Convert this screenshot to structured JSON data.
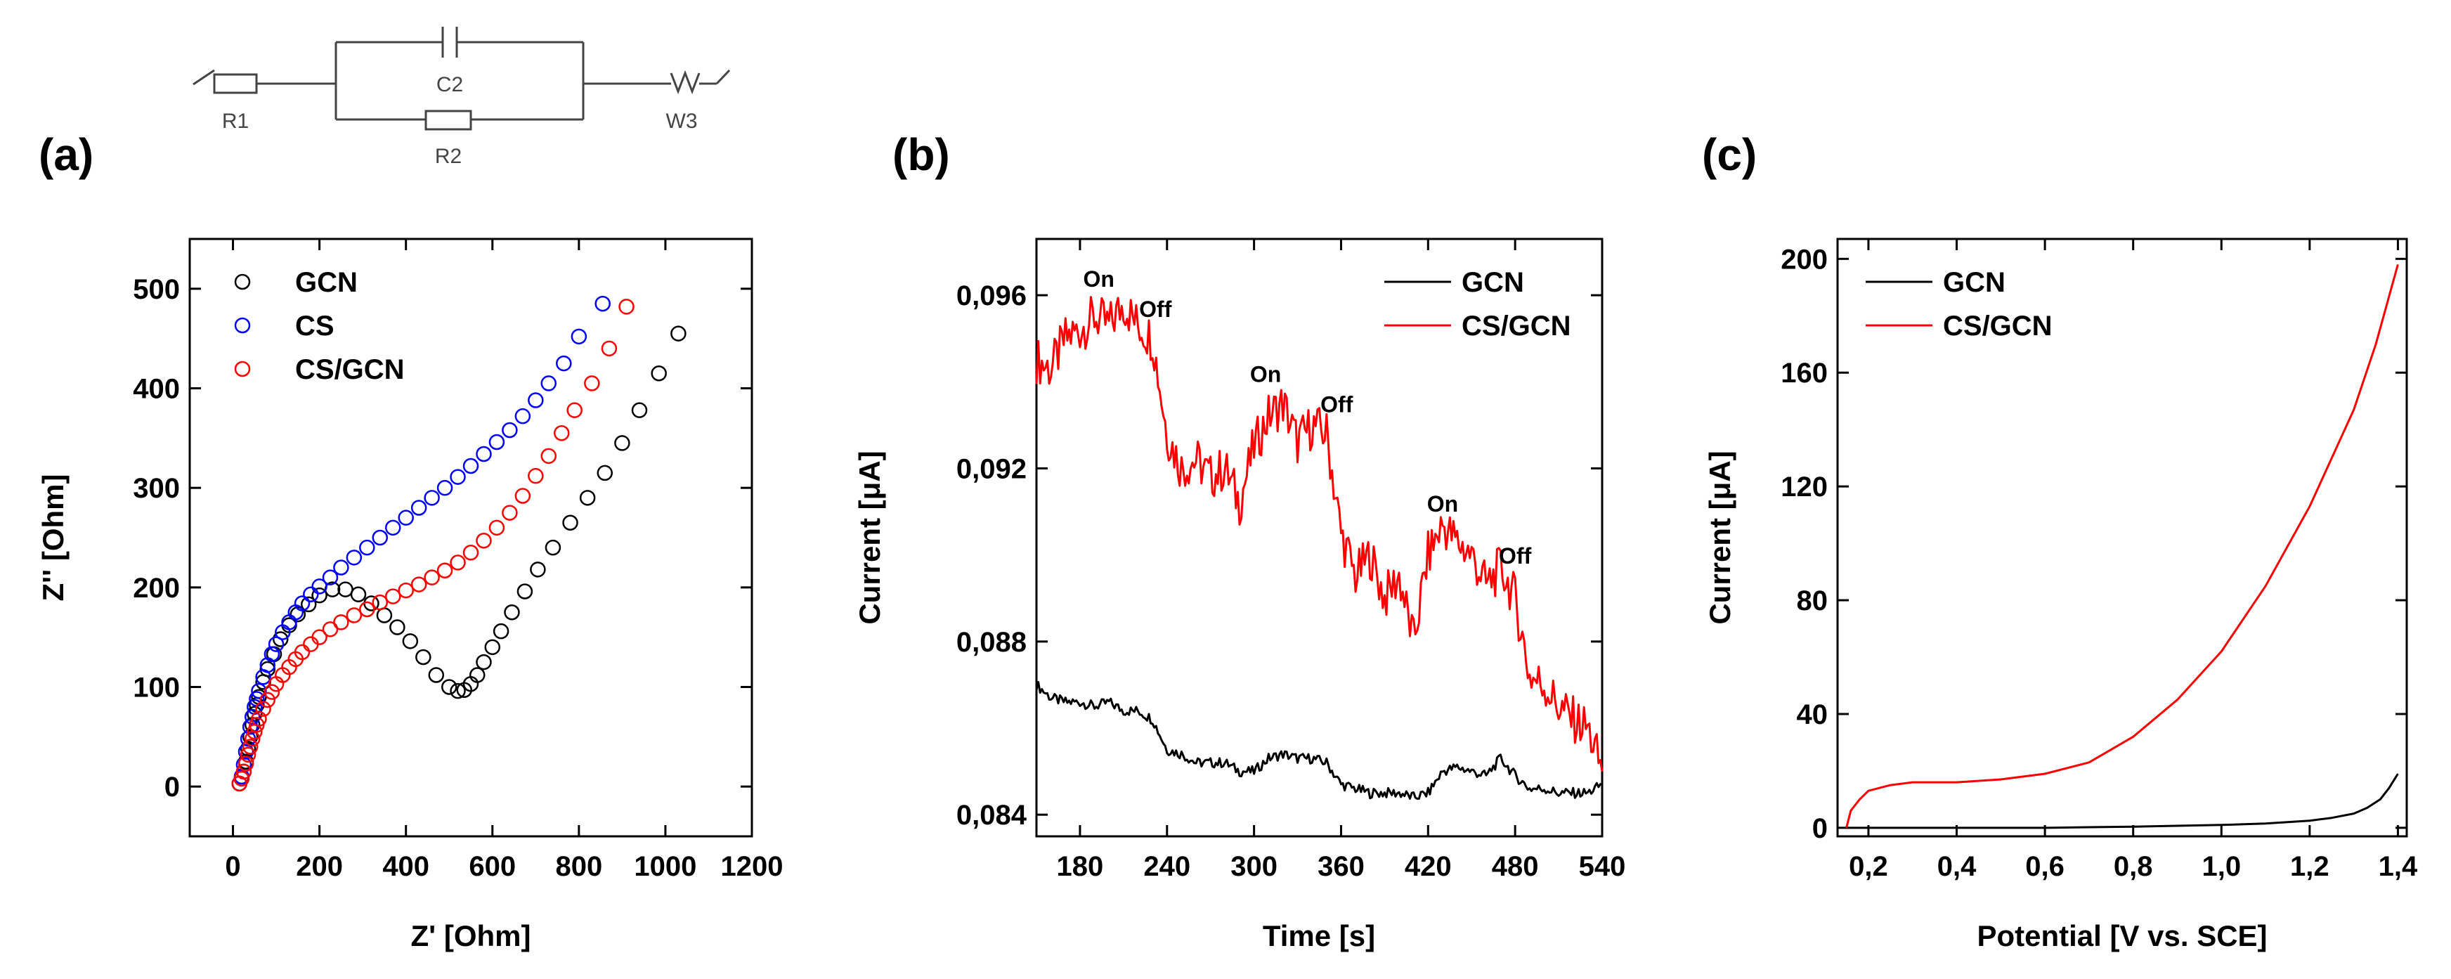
{
  "circuit": {
    "labels": [
      "R1",
      "C2",
      "R2",
      "W3"
    ]
  },
  "chart_data": [
    {
      "panel": "(a)",
      "type": "scatter",
      "xlabel": "Z' [Ohm]",
      "ylabel": "Z'' [Ohm]",
      "xlim": [
        -100,
        1200
      ],
      "ylim": [
        -50,
        550
      ],
      "xticks": [
        0,
        200,
        400,
        600,
        800,
        1000,
        1200
      ],
      "yticks": [
        0,
        100,
        200,
        300,
        400,
        500
      ],
      "legend_position": "top-left",
      "series": [
        {
          "name": "GCN",
          "color": "#000000",
          "marker": "open-circle",
          "x": [
            15,
            20,
            25,
            30,
            35,
            40,
            45,
            50,
            55,
            60,
            70,
            80,
            95,
            110,
            130,
            150,
            175,
            200,
            230,
            260,
            290,
            320,
            350,
            380,
            410,
            440,
            470,
            500,
            520,
            535,
            550,
            565,
            580,
            600,
            620,
            645,
            675,
            705,
            740,
            780,
            820,
            860,
            900,
            940,
            985,
            1030
          ],
          "y": [
            3,
            8,
            15,
            25,
            38,
            50,
            62,
            73,
            82,
            90,
            105,
            118,
            133,
            148,
            162,
            173,
            183,
            192,
            198,
            198,
            193,
            184,
            172,
            160,
            146,
            130,
            112,
            100,
            96,
            97,
            103,
            112,
            125,
            140,
            156,
            175,
            196,
            218,
            240,
            265,
            290,
            315,
            345,
            378,
            415,
            455
          ]
        },
        {
          "name": "CS",
          "color": "#0000ff",
          "marker": "open-circle",
          "x": [
            15,
            20,
            25,
            30,
            35,
            40,
            45,
            50,
            55,
            60,
            70,
            80,
            90,
            100,
            115,
            130,
            145,
            160,
            180,
            200,
            225,
            250,
            280,
            310,
            340,
            370,
            400,
            430,
            460,
            490,
            520,
            550,
            580,
            610,
            640,
            670,
            700,
            730,
            765,
            800,
            855
          ],
          "y": [
            3,
            10,
            22,
            35,
            48,
            60,
            70,
            80,
            88,
            96,
            110,
            122,
            133,
            143,
            155,
            165,
            175,
            184,
            193,
            201,
            210,
            220,
            230,
            240,
            250,
            260,
            270,
            280,
            290,
            300,
            311,
            322,
            334,
            346,
            358,
            372,
            388,
            405,
            425,
            452,
            485
          ]
        },
        {
          "name": "CS/GCN",
          "color": "#ff0000",
          "marker": "open-circle",
          "x": [
            15,
            20,
            25,
            30,
            35,
            40,
            45,
            50,
            55,
            60,
            70,
            80,
            90,
            100,
            115,
            130,
            145,
            160,
            180,
            200,
            225,
            250,
            280,
            310,
            340,
            370,
            400,
            430,
            460,
            490,
            520,
            550,
            580,
            610,
            640,
            670,
            700,
            730,
            760,
            790,
            830,
            870,
            910
          ],
          "y": [
            3,
            8,
            15,
            23,
            32,
            40,
            48,
            55,
            62,
            68,
            78,
            87,
            95,
            103,
            112,
            120,
            128,
            135,
            143,
            150,
            158,
            165,
            172,
            178,
            185,
            191,
            197,
            203,
            210,
            217,
            225,
            235,
            247,
            260,
            275,
            292,
            312,
            332,
            355,
            378,
            405,
            440,
            482
          ]
        }
      ]
    },
    {
      "panel": "(b)",
      "type": "line",
      "xlabel": "Time [s]",
      "ylabel": "Current [μA]",
      "xlim": [
        150,
        540
      ],
      "ylim": [
        0.0835,
        0.0973
      ],
      "xticks": [
        180,
        240,
        300,
        360,
        420,
        480,
        540
      ],
      "yticks": [
        0.084,
        0.088,
        0.092,
        0.096
      ],
      "ytick_labels": [
        "0,084",
        "0,088",
        "0,092",
        "0,096"
      ],
      "legend_position": "top-right",
      "series": [
        {
          "name": "GCN",
          "color": "#000000",
          "x": [
            150,
            160,
            170,
            180,
            190,
            200,
            210,
            220,
            230,
            240,
            250,
            260,
            270,
            280,
            290,
            300,
            310,
            320,
            330,
            340,
            350,
            360,
            370,
            380,
            390,
            400,
            410,
            420,
            430,
            440,
            450,
            460,
            470,
            480,
            490,
            500,
            510,
            520,
            530,
            540
          ],
          "y": [
            0.087,
            0.0867,
            0.0866,
            0.0866,
            0.0865,
            0.0866,
            0.0864,
            0.0864,
            0.0862,
            0.0855,
            0.0854,
            0.0852,
            0.0852,
            0.0852,
            0.085,
            0.085,
            0.0853,
            0.0854,
            0.0853,
            0.0853,
            0.0852,
            0.0847,
            0.0846,
            0.0845,
            0.0845,
            0.0845,
            0.0844,
            0.0845,
            0.085,
            0.0851,
            0.085,
            0.0849,
            0.0853,
            0.0849,
            0.0846,
            0.0846,
            0.0845,
            0.0845,
            0.0845,
            0.0847
          ]
        },
        {
          "name": "CS/GCN",
          "color": "#ff0000",
          "x": [
            150,
            160,
            170,
            180,
            190,
            200,
            210,
            220,
            230,
            240,
            250,
            260,
            270,
            280,
            290,
            300,
            310,
            320,
            330,
            340,
            350,
            360,
            370,
            380,
            390,
            400,
            410,
            420,
            430,
            440,
            450,
            460,
            470,
            480,
            490,
            500,
            510,
            520,
            530,
            540
          ],
          "y": [
            0.0945,
            0.0943,
            0.095,
            0.0952,
            0.0955,
            0.0953,
            0.0958,
            0.0953,
            0.095,
            0.0928,
            0.092,
            0.0922,
            0.0918,
            0.092,
            0.0912,
            0.0925,
            0.0932,
            0.0935,
            0.0926,
            0.093,
            0.0928,
            0.0905,
            0.0895,
            0.09,
            0.089,
            0.0895,
            0.088,
            0.09,
            0.0907,
            0.0903,
            0.09,
            0.0893,
            0.0897,
            0.089,
            0.0872,
            0.087,
            0.0865,
            0.0862,
            0.086,
            0.085
          ]
        }
      ],
      "annotations": [
        {
          "text": "On",
          "x": 193,
          "y": 0.0962
        },
        {
          "text": "Off",
          "x": 232,
          "y": 0.0955
        },
        {
          "text": "On",
          "x": 308,
          "y": 0.094
        },
        {
          "text": "Off",
          "x": 357,
          "y": 0.0933
        },
        {
          "text": "On",
          "x": 430,
          "y": 0.091
        },
        {
          "text": "Off",
          "x": 480,
          "y": 0.0898
        }
      ]
    },
    {
      "panel": "(c)",
      "type": "line",
      "xlabel": "Potential [V vs. SCE]",
      "ylabel": "Current [μA]",
      "xlim": [
        0.13,
        1.42
      ],
      "ylim": [
        -3,
        207
      ],
      "xticks": [
        0.2,
        0.4,
        0.6,
        0.8,
        1.0,
        1.2,
        1.4
      ],
      "xtick_labels": [
        "0,2",
        "0,4",
        "0,6",
        "0,8",
        "1,0",
        "1,2",
        "1,4"
      ],
      "yticks": [
        0,
        40,
        80,
        120,
        160,
        200
      ],
      "legend_position": "top-left",
      "series": [
        {
          "name": "GCN",
          "color": "#000000",
          "x": [
            0.15,
            0.2,
            0.3,
            0.4,
            0.5,
            0.6,
            0.7,
            0.8,
            0.9,
            1.0,
            1.1,
            1.2,
            1.25,
            1.3,
            1.33,
            1.36,
            1.38,
            1.4
          ],
          "y": [
            0,
            0,
            0,
            0,
            0,
            0,
            0.2,
            0.4,
            0.7,
            1,
            1.5,
            2.5,
            3.5,
            5,
            7,
            10,
            14,
            19
          ]
        },
        {
          "name": "CS/GCN",
          "color": "#ff0000",
          "x": [
            0.15,
            0.16,
            0.18,
            0.2,
            0.25,
            0.3,
            0.4,
            0.5,
            0.6,
            0.7,
            0.8,
            0.9,
            1.0,
            1.1,
            1.2,
            1.3,
            1.35,
            1.4
          ],
          "y": [
            0,
            6,
            10,
            13,
            15,
            16,
            16,
            17,
            19,
            23,
            32,
            45,
            62,
            85,
            113,
            147,
            170,
            198
          ]
        }
      ]
    }
  ]
}
